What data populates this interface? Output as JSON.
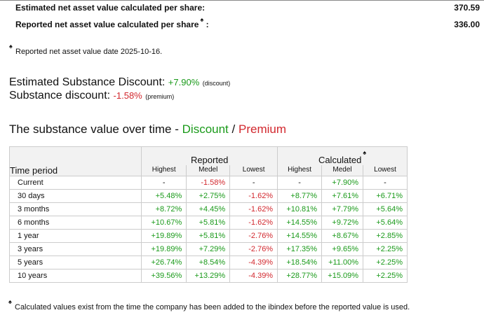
{
  "nav": {
    "estimated_label": "Estimated net asset value calculated per share:",
    "estimated_value": "370.59",
    "reported_label": "Reported net asset value calculated per share",
    "reported_suffix": ":",
    "reported_value": "336.00",
    "asterisk": "♠"
  },
  "nav_footnote": "Reported net asset value date 2025-10-16.",
  "discounts": {
    "estimated_label": "Estimated Substance Discount:",
    "estimated_value": "+7.90%",
    "estimated_tag": "(discount)",
    "substance_label": "Substance discount:",
    "substance_value": "-1.58%",
    "substance_tag": "(premium)"
  },
  "heading": {
    "prefix": "The substance value over time -",
    "discount": "Discount",
    "slash": "/",
    "premium": "Premium"
  },
  "table": {
    "time_period_header": "Time period",
    "reported_header": "Reported",
    "calculated_header": "Calculated",
    "sub_headers": [
      "Highest",
      "Medel",
      "Lowest",
      "Highest",
      "Medel",
      "Lowest"
    ],
    "rows": [
      {
        "period": "Current",
        "cells": [
          {
            "v": "-",
            "c": "n"
          },
          {
            "v": "-1.58%",
            "c": "r"
          },
          {
            "v": "-",
            "c": "n"
          },
          {
            "v": "-",
            "c": "n"
          },
          {
            "v": "+7.90%",
            "c": "g"
          },
          {
            "v": "-",
            "c": "n"
          }
        ]
      },
      {
        "period": "30 days",
        "cells": [
          {
            "v": "+5.48%",
            "c": "g"
          },
          {
            "v": "+2.75%",
            "c": "g"
          },
          {
            "v": "-1.62%",
            "c": "r"
          },
          {
            "v": "+8.77%",
            "c": "g"
          },
          {
            "v": "+7.61%",
            "c": "g"
          },
          {
            "v": "+6.71%",
            "c": "g"
          }
        ]
      },
      {
        "period": "3 months",
        "cells": [
          {
            "v": "+8.72%",
            "c": "g"
          },
          {
            "v": "+4.45%",
            "c": "g"
          },
          {
            "v": "-1.62%",
            "c": "r"
          },
          {
            "v": "+10.81%",
            "c": "g"
          },
          {
            "v": "+7.79%",
            "c": "g"
          },
          {
            "v": "+5.64%",
            "c": "g"
          }
        ]
      },
      {
        "period": "6 months",
        "cells": [
          {
            "v": "+10.67%",
            "c": "g"
          },
          {
            "v": "+5.81%",
            "c": "g"
          },
          {
            "v": "-1.62%",
            "c": "r"
          },
          {
            "v": "+14.55%",
            "c": "g"
          },
          {
            "v": "+9.72%",
            "c": "g"
          },
          {
            "v": "+5.64%",
            "c": "g"
          }
        ]
      },
      {
        "period": "1 year",
        "cells": [
          {
            "v": "+19.89%",
            "c": "g"
          },
          {
            "v": "+5.81%",
            "c": "g"
          },
          {
            "v": "-2.76%",
            "c": "r"
          },
          {
            "v": "+14.55%",
            "c": "g"
          },
          {
            "v": "+8.67%",
            "c": "g"
          },
          {
            "v": "+2.85%",
            "c": "g"
          }
        ]
      },
      {
        "period": "3 years",
        "cells": [
          {
            "v": "+19.89%",
            "c": "g"
          },
          {
            "v": "+7.29%",
            "c": "g"
          },
          {
            "v": "-2.76%",
            "c": "r"
          },
          {
            "v": "+17.35%",
            "c": "g"
          },
          {
            "v": "+9.65%",
            "c": "g"
          },
          {
            "v": "+2.25%",
            "c": "g"
          }
        ]
      },
      {
        "period": "5 years",
        "cells": [
          {
            "v": "+26.74%",
            "c": "g"
          },
          {
            "v": "+8.54%",
            "c": "g"
          },
          {
            "v": "-4.39%",
            "c": "r"
          },
          {
            "v": "+18.54%",
            "c": "g"
          },
          {
            "v": "+11.00%",
            "c": "g"
          },
          {
            "v": "+2.25%",
            "c": "g"
          }
        ]
      },
      {
        "period": "10 years",
        "cells": [
          {
            "v": "+39.56%",
            "c": "g"
          },
          {
            "v": "+13.29%",
            "c": "g"
          },
          {
            "v": "-4.39%",
            "c": "r"
          },
          {
            "v": "+28.77%",
            "c": "g"
          },
          {
            "v": "+15.09%",
            "c": "g"
          },
          {
            "v": "+2.25%",
            "c": "g"
          }
        ]
      }
    ]
  },
  "table_footnote": "Calculated values exist from the time the company has been added to the ibindex before the reported value is used.",
  "colors": {
    "positive": "#1a9a1a",
    "negative": "#d2282e"
  }
}
